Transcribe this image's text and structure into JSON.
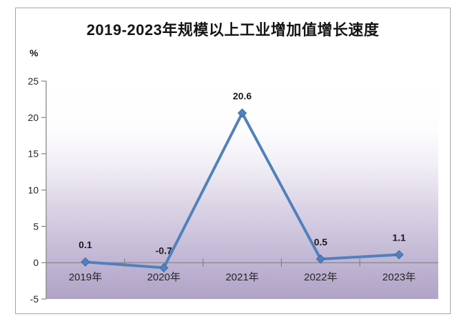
{
  "frame": {
    "border_color": "#a3a3a3",
    "background": "#ffffff"
  },
  "chart_data": {
    "type": "line",
    "title": "2019-2023年规模以上工业增加值增长速度",
    "unit_label": "%",
    "categories": [
      "2019年",
      "2020年",
      "2021年",
      "2022年",
      "2023年"
    ],
    "values": [
      0.1,
      -0.7,
      20.6,
      0.5,
      1.1
    ],
    "data_labels": [
      "0.1",
      "-0.7",
      "20.6",
      "0.5",
      "1.1"
    ],
    "ylim": [
      -5,
      25
    ],
    "y_tick_step": 5,
    "y_tick_labels": [
      "25",
      "20",
      "15",
      "10",
      "5",
      "0",
      "-5"
    ],
    "grid": false,
    "legend": "none",
    "marker": "diamond",
    "line_color": "#4f81bd",
    "marker_edge_color": "#3e6ca6",
    "axis_color": "#808080",
    "title_color": "#141414",
    "data_label_color": "#1a1a1a",
    "tick_label_color": "#262626",
    "plot_gradient_top": "#ffffff",
    "plot_gradient_bottom": "#b0a3c6"
  }
}
